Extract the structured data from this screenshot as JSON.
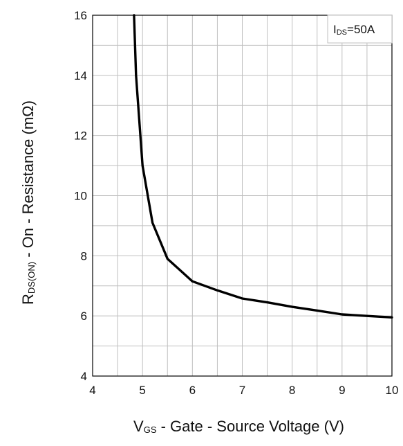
{
  "chart_data": {
    "type": "line",
    "xlabel": {
      "main": "V",
      "sub": "GS",
      "rest": " - Gate - Source Voltage (V)"
    },
    "ylabel": {
      "main": "R",
      "sub": "DS(ON)",
      "rest": " - On - Resistance (mΩ)"
    },
    "xlim": [
      4,
      10
    ],
    "ylim": [
      4,
      16
    ],
    "x_ticks": [
      "4",
      "5",
      "6",
      "7",
      "8",
      "9",
      "10"
    ],
    "y_ticks": [
      "4",
      "6",
      "8",
      "10",
      "12",
      "14",
      "16"
    ],
    "grid": true,
    "legend": {
      "position": "top-right",
      "main": "I",
      "sub": "DS",
      "rest": "=50A"
    },
    "series": [
      {
        "x": [
          4.83,
          4.87,
          5.0,
          5.2,
          5.5,
          6.0,
          6.5,
          7.0,
          7.5,
          8.0,
          8.5,
          9.0,
          9.5,
          10.0
        ],
        "y": [
          16.0,
          14.0,
          11.0,
          9.1,
          7.9,
          7.15,
          6.85,
          6.58,
          6.45,
          6.3,
          6.18,
          6.05,
          6.0,
          5.95
        ]
      }
    ],
    "colors": {
      "line": "#000000",
      "grid": "#bfbfbf",
      "frame": "#000000"
    }
  }
}
